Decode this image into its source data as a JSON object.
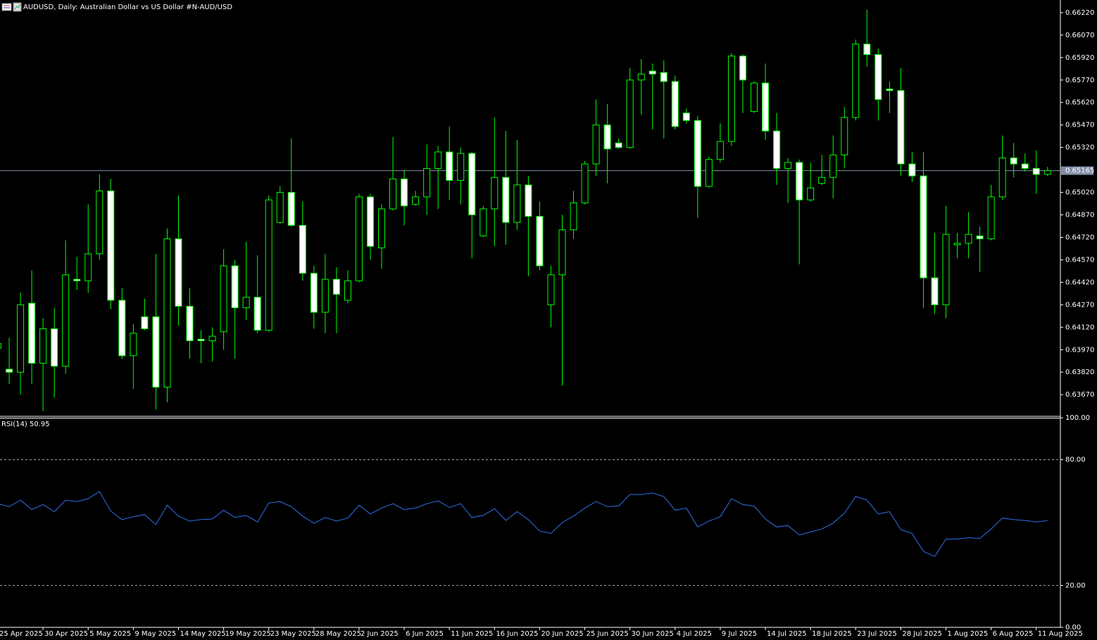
{
  "chart_data": [
    {
      "type": "candlestick",
      "title": "AUDUSD, Daily:  Australian Dollar vs US Dollar #N-AUD/USD",
      "categories": [
        "25 Apr 2025",
        null,
        null,
        null,
        "30 Apr 2025",
        null,
        null,
        null,
        "5 May 2025",
        null,
        null,
        null,
        "9 May 2025",
        null,
        null,
        null,
        "14 May 2025",
        null,
        null,
        null,
        "19 May 2025",
        null,
        null,
        null,
        "23 May 2025",
        null,
        null,
        null,
        "28 May 2025",
        null,
        null,
        null,
        "2 Jun 2025",
        null,
        null,
        null,
        "6 Jun 2025",
        null,
        null,
        null,
        "11 Jun 2025",
        null,
        null,
        null,
        "16 Jun 2025",
        null,
        null,
        null,
        "20 Jun 2025",
        null,
        null,
        null,
        "25 Jun 2025",
        null,
        null,
        null,
        "30 Jun 2025",
        null,
        null,
        null,
        "4 Jul 2025",
        null,
        null,
        null,
        "9 Jul 2025",
        null,
        null,
        null,
        "14 Jul 2025",
        null,
        null,
        null,
        "18 Jul 2025",
        null,
        null,
        null,
        "23 Jul 2025",
        null,
        null,
        null,
        "28 Jul 2025",
        null,
        null,
        null,
        "1 Aug 2025",
        null,
        null,
        null,
        "6 Aug 2025",
        null,
        null,
        null,
        "11 Aug 2025",
        null
      ],
      "open": [
        0.6398,
        0.6384,
        0.6382,
        0.6428,
        0.6388,
        0.6411,
        0.6386,
        0.6444,
        0.6443,
        0.6461,
        0.6503,
        0.643,
        0.6393,
        0.6419,
        0.6419,
        0.6372,
        0.6471,
        0.6426,
        0.6404,
        0.6403,
        0.6409,
        0.6453,
        0.6425,
        0.6432,
        0.641,
        0.6482,
        0.6502,
        0.648,
        0.6448,
        0.6422,
        0.6444,
        0.643,
        0.6443,
        0.6499,
        0.6465,
        0.6491,
        0.6511,
        0.6494,
        0.6499,
        0.6518,
        0.6529,
        0.651,
        0.6528,
        0.6473,
        0.6491,
        0.6512,
        0.6482,
        0.6507,
        0.6486,
        0.6427,
        0.6447,
        0.6477,
        0.6495,
        0.6521,
        0.6547,
        0.6535,
        0.6532,
        0.6577,
        0.6583,
        0.6582,
        0.6576,
        0.6555,
        0.655,
        0.6506,
        0.6524,
        0.6536,
        0.6593,
        0.6556,
        0.6575,
        0.6543,
        0.6518,
        0.6522,
        0.6497,
        0.6508,
        0.6512,
        0.6527,
        0.6552,
        0.6601,
        0.6594,
        0.6571,
        0.657,
        0.6521,
        0.6513,
        0.6445,
        0.6427,
        0.6467,
        0.6468,
        0.6473,
        0.6471,
        0.6499,
        0.6525,
        0.6521,
        0.6518,
        0.6514
      ],
      "high": [
        0.6403,
        0.6405,
        0.6435,
        0.645,
        0.6418,
        0.6425,
        0.647,
        0.6459,
        0.6494,
        0.6514,
        0.6511,
        0.6438,
        0.6414,
        0.6431,
        0.6461,
        0.6478,
        0.65,
        0.6438,
        0.641,
        0.6412,
        0.6464,
        0.6457,
        0.6469,
        0.646,
        0.65,
        0.6506,
        0.6538,
        0.6496,
        0.6453,
        0.6461,
        0.6452,
        0.645,
        0.6501,
        0.6501,
        0.6494,
        0.6539,
        0.6517,
        0.6503,
        0.6534,
        0.6533,
        0.6546,
        0.6532,
        0.6529,
        0.6493,
        0.6552,
        0.6543,
        0.6537,
        0.6513,
        0.6496,
        0.6453,
        0.6487,
        0.6503,
        0.6523,
        0.6564,
        0.6561,
        0.6538,
        0.6585,
        0.6591,
        0.6588,
        0.659,
        0.658,
        0.6558,
        0.6553,
        0.6526,
        0.6548,
        0.6595,
        0.6594,
        0.6576,
        0.6588,
        0.6555,
        0.6525,
        0.6524,
        0.6522,
        0.6527,
        0.654,
        0.6559,
        0.6604,
        0.6624,
        0.6598,
        0.6576,
        0.6585,
        0.6529,
        0.6529,
        0.6475,
        0.6493,
        0.6475,
        0.6489,
        0.6479,
        0.6507,
        0.654,
        0.6535,
        0.6528,
        0.653,
        0.6519
      ],
      "low": [
        0.6396,
        0.6374,
        0.6367,
        0.6374,
        0.6356,
        0.6365,
        0.6381,
        0.6437,
        0.6435,
        0.6457,
        0.6424,
        0.6391,
        0.6371,
        0.641,
        0.6357,
        0.6362,
        0.6413,
        0.6391,
        0.6388,
        0.6389,
        0.6397,
        0.6391,
        0.6417,
        0.6408,
        0.6409,
        0.6481,
        0.6479,
        0.6443,
        0.6411,
        0.6408,
        0.6408,
        0.6428,
        0.6442,
        0.6457,
        0.6451,
        0.649,
        0.648,
        0.6493,
        0.6487,
        0.6491,
        0.6497,
        0.6494,
        0.6458,
        0.6472,
        0.6466,
        0.6467,
        0.6477,
        0.6446,
        0.645,
        0.6412,
        0.6373,
        0.6471,
        0.6494,
        0.6513,
        0.6508,
        0.6531,
        0.6531,
        0.6554,
        0.6544,
        0.6538,
        0.6544,
        0.6548,
        0.6485,
        0.6505,
        0.6522,
        0.6533,
        0.6555,
        0.6555,
        0.6537,
        0.6507,
        0.6495,
        0.6454,
        0.6496,
        0.6507,
        0.6498,
        0.6518,
        0.655,
        0.6586,
        0.655,
        0.6555,
        0.6513,
        0.6509,
        0.6425,
        0.6421,
        0.6418,
        0.6458,
        0.6458,
        0.6449,
        0.647,
        0.6497,
        0.6512,
        0.6516,
        0.6501,
        0.6513
      ],
      "close": [
        0.6401,
        0.6382,
        0.6427,
        0.6388,
        0.6411,
        0.6386,
        0.6447,
        0.6443,
        0.6461,
        0.6503,
        0.643,
        0.6393,
        0.6408,
        0.6411,
        0.6372,
        0.6471,
        0.6426,
        0.6403,
        0.6403,
        0.6406,
        0.6453,
        0.6425,
        0.6432,
        0.641,
        0.6497,
        0.6502,
        0.648,
        0.6448,
        0.6422,
        0.6444,
        0.6434,
        0.6443,
        0.6499,
        0.6466,
        0.6491,
        0.6511,
        0.6493,
        0.6499,
        0.6518,
        0.6529,
        0.651,
        0.6528,
        0.6487,
        0.6491,
        0.6512,
        0.6482,
        0.6507,
        0.6486,
        0.6453,
        0.6447,
        0.6477,
        0.6495,
        0.6521,
        0.6547,
        0.6531,
        0.6532,
        0.6577,
        0.6581,
        0.6581,
        0.6576,
        0.6546,
        0.655,
        0.6506,
        0.6524,
        0.6536,
        0.6593,
        0.6577,
        0.6575,
        0.6543,
        0.6518,
        0.6522,
        0.6497,
        0.6505,
        0.6512,
        0.6527,
        0.6552,
        0.6601,
        0.6594,
        0.6564,
        0.657,
        0.6521,
        0.6513,
        0.6445,
        0.6427,
        0.6474,
        0.6468,
        0.6474,
        0.6471,
        0.6499,
        0.6525,
        0.6521,
        0.6518,
        0.6514,
        0.65165
      ],
      "color": "#00ff00",
      "bull_fill": "#000000",
      "bear_fill": "#ffffff",
      "current_price": {
        "value": 0.65165,
        "label": "0.65165"
      },
      "current_price_color": "#7f8fa6",
      "ylim": [
        0.6353,
        0.6629
      ],
      "yticks": [
        {
          "value": 0.6622,
          "label": "0.66220"
        },
        {
          "value": 0.6607,
          "label": "0.66070"
        },
        {
          "value": 0.6592,
          "label": "0.65920"
        },
        {
          "value": 0.6577,
          "label": "0.65770"
        },
        {
          "value": 0.6562,
          "label": "0.65620"
        },
        {
          "value": 0.6547,
          "label": "0.65470"
        },
        {
          "value": 0.6532,
          "label": "0.65320"
        },
        {
          "value": 0.6502,
          "label": "0.65020"
        },
        {
          "value": 0.6487,
          "label": "0.64870"
        },
        {
          "value": 0.6472,
          "label": "0.64720"
        },
        {
          "value": 0.6457,
          "label": "0.64570"
        },
        {
          "value": 0.6442,
          "label": "0.64420"
        },
        {
          "value": 0.6427,
          "label": "0.64270"
        },
        {
          "value": 0.6412,
          "label": "0.64120"
        },
        {
          "value": 0.6397,
          "label": "0.63970"
        },
        {
          "value": 0.6382,
          "label": "0.63820"
        },
        {
          "value": 0.6367,
          "label": "0.63670"
        }
      ],
      "grid": false
    },
    {
      "type": "line",
      "title": "RSI(14) 50.95",
      "values": [
        59.0,
        57.6,
        60.7,
        56.2,
        58.6,
        55.2,
        60.7,
        60.0,
        61.4,
        64.8,
        55.5,
        51.4,
        52.8,
        53.8,
        49.0,
        58.3,
        53.1,
        50.7,
        51.4,
        51.7,
        55.9,
        52.4,
        53.4,
        50.3,
        59.3,
        60.0,
        57.6,
        53.1,
        49.7,
        52.4,
        50.7,
        52.1,
        58.3,
        54.1,
        56.9,
        59.0,
        56.2,
        56.9,
        59.0,
        60.3,
        57.2,
        59.0,
        52.4,
        53.4,
        56.6,
        51.0,
        55.2,
        51.4,
        45.9,
        44.8,
        50.0,
        53.1,
        56.9,
        60.0,
        57.6,
        57.9,
        63.4,
        63.4,
        64.1,
        62.4,
        55.9,
        56.9,
        47.9,
        50.7,
        52.8,
        61.4,
        58.6,
        57.9,
        51.7,
        47.9,
        48.6,
        44.1,
        45.5,
        46.9,
        49.7,
        54.5,
        62.4,
        60.7,
        54.1,
        55.2,
        46.6,
        44.8,
        36.2,
        33.8,
        42.1,
        42.1,
        42.8,
        42.4,
        46.9,
        52.1,
        51.4,
        51.0,
        50.3,
        50.95
      ],
      "color": "#2f6fe8",
      "ylim": [
        0,
        100
      ],
      "yticks": [
        {
          "value": 100,
          "label": "100.00"
        },
        {
          "value": 80,
          "label": "80.00"
        },
        {
          "value": 20,
          "label": "20.00"
        },
        {
          "value": 0,
          "label": "0.00"
        }
      ],
      "levels": [
        80,
        20
      ]
    }
  ]
}
